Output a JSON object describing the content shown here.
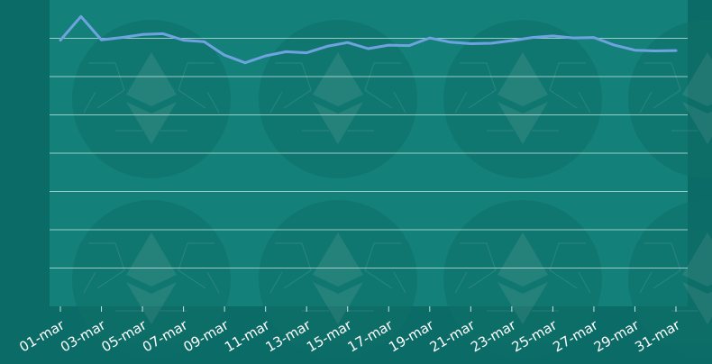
{
  "chart_data": {
    "type": "line",
    "categories": [
      "01-mar",
      "02-mar",
      "03-mar",
      "04-mar",
      "05-mar",
      "06-mar",
      "07-mar",
      "08-mar",
      "09-mar",
      "10-mar",
      "11-mar",
      "12-mar",
      "13-mar",
      "14-mar",
      "15-mar",
      "16-mar",
      "17-mar",
      "18-mar",
      "19-mar",
      "20-mar",
      "21-mar",
      "22-mar",
      "23-mar",
      "24-mar",
      "25-mar",
      "26-mar",
      "27-mar",
      "28-mar",
      "29-mar",
      "30-mar",
      "31-mar"
    ],
    "x_tick_labels": [
      "01-mar",
      "03-mar",
      "05-mar",
      "07-mar",
      "09-mar",
      "11-mar",
      "13-mar",
      "15-mar",
      "17-mar",
      "19-mar",
      "21-mar",
      "23-mar",
      "25-mar",
      "27-mar",
      "29-mar",
      "31-mar"
    ],
    "series": [
      {
        "values": [
          69.5,
          75.7,
          69.6,
          70.2,
          71.0,
          71.2,
          69.5,
          69.1,
          65.6,
          63.6,
          65.4,
          66.5,
          66.2,
          67.9,
          68.9,
          67.3,
          68.2,
          68.1,
          70.1,
          69.0,
          68.6,
          68.7,
          69.4,
          70.2,
          70.6,
          70.1,
          70.2,
          68.2,
          66.9,
          66.7,
          66.8
        ],
        "color": "#6fa3e0"
      }
    ],
    "ylim": [
      0,
      80
    ],
    "gridlines": [
      10,
      20,
      30,
      40,
      50,
      60,
      70
    ],
    "grid": true,
    "title": "",
    "xlabel": "",
    "ylabel": ""
  },
  "colors": {
    "background": "#0b6b66",
    "plot_area": "#138079",
    "gridline": "#c9e6e3",
    "watermark": "#0f6f69",
    "line": "#6fa3e0",
    "tick_label": "#ffffff"
  }
}
